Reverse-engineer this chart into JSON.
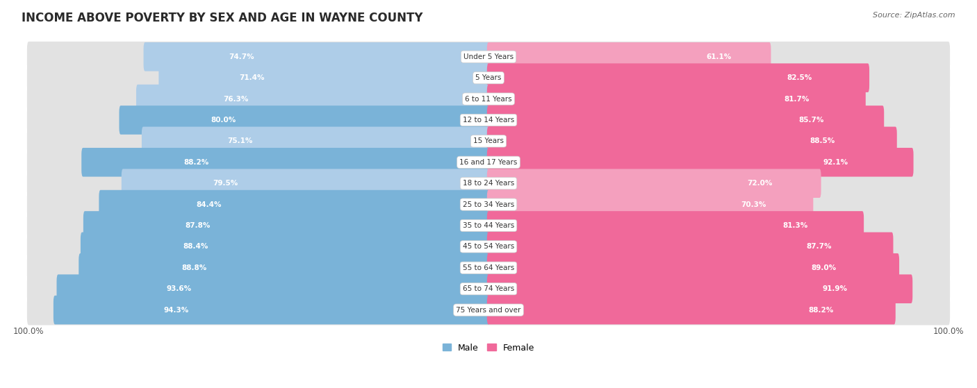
{
  "title": "INCOME ABOVE POVERTY BY SEX AND AGE IN WAYNE COUNTY",
  "source": "Source: ZipAtlas.com",
  "categories": [
    "Under 5 Years",
    "5 Years",
    "6 to 11 Years",
    "12 to 14 Years",
    "15 Years",
    "16 and 17 Years",
    "18 to 24 Years",
    "25 to 34 Years",
    "35 to 44 Years",
    "45 to 54 Years",
    "55 to 64 Years",
    "65 to 74 Years",
    "75 Years and over"
  ],
  "male_values": [
    74.7,
    71.4,
    76.3,
    80.0,
    75.1,
    88.2,
    79.5,
    84.4,
    87.8,
    88.4,
    88.8,
    93.6,
    94.3
  ],
  "female_values": [
    61.1,
    82.5,
    81.7,
    85.7,
    88.5,
    92.1,
    72.0,
    70.3,
    81.3,
    87.7,
    89.0,
    91.9,
    88.2
  ],
  "male_color_strong": "#7ab3d8",
  "male_color_light": "#aecde8",
  "female_color_strong": "#f0699a",
  "female_color_light": "#f4a0be",
  "capsule_bg": "#e2e2e2",
  "row_bg": "#f7f7f7",
  "background_color": "#ffffff",
  "title_fontsize": 12,
  "label_fontsize": 7.5,
  "value_fontsize": 7.5,
  "source_fontsize": 8,
  "legend_fontsize": 9,
  "max_value": 100.0
}
